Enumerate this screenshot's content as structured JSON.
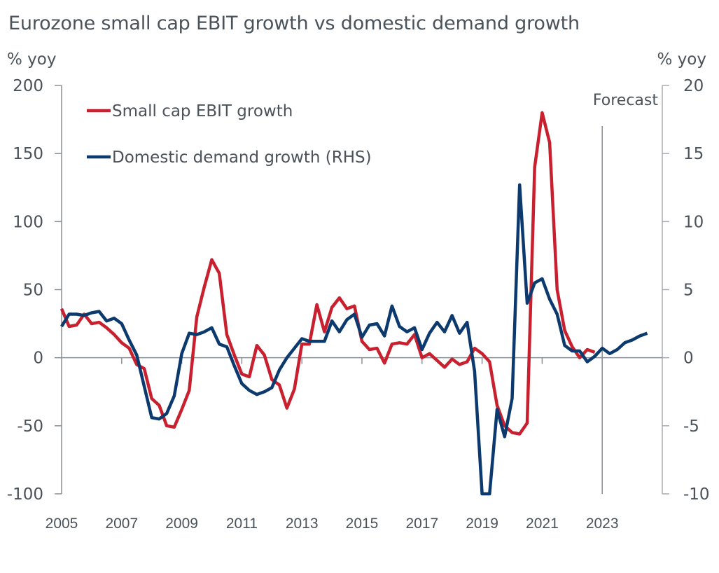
{
  "chart_data": {
    "type": "line",
    "title": "Eurozone small cap EBIT growth vs domestic demand growth",
    "ylabel_left": "% yoy",
    "ylabel_right": "% yoy",
    "xlabel": "",
    "ylim_left": [
      -100,
      200
    ],
    "ylim_right": [
      -10,
      20
    ],
    "yticks_left": [
      "200",
      "150",
      "100",
      "50",
      "0",
      "-50",
      "-100"
    ],
    "yticks_left_values": [
      200,
      150,
      100,
      50,
      0,
      -50,
      -100
    ],
    "yticks_right": [
      "20",
      "15",
      "10",
      "5",
      "0",
      "-5",
      "-10"
    ],
    "yticks_right_values": [
      20,
      15,
      10,
      5,
      0,
      -5,
      -10
    ],
    "xticks": [
      "2005",
      "2007",
      "2009",
      "2011",
      "2013",
      "2015",
      "2017",
      "2019",
      "2021",
      "2023"
    ],
    "xticks_values": [
      2005,
      2007,
      2009,
      2011,
      2013,
      2015,
      2017,
      2019,
      2021,
      2023
    ],
    "xlim": [
      2005,
      2025
    ],
    "grid": false,
    "legend_position": "top-left",
    "annotations": [
      {
        "text": "Forecast",
        "x": 2023
      }
    ],
    "series": [
      {
        "name": "Small cap EBIT growth",
        "axis": "left",
        "color": "#c8202e",
        "x_start": 2005.0,
        "x_step": 0.25,
        "values": [
          36,
          23,
          24,
          32,
          25,
          26,
          22,
          17,
          11,
          7,
          -5,
          -8,
          -30,
          -35,
          -50,
          -51,
          -38,
          -24,
          30,
          52,
          72,
          62,
          17,
          2,
          -12,
          -14,
          9,
          2,
          -16,
          -20,
          -37,
          -23,
          10,
          10,
          39,
          19,
          37,
          44,
          36,
          38,
          12,
          6,
          7,
          -4,
          10,
          11,
          10,
          17,
          0,
          3,
          -2,
          -7,
          -1,
          -5,
          -3,
          7,
          3,
          -3,
          -35,
          -50,
          -55,
          -56,
          -48,
          140,
          180,
          158,
          50,
          20,
          8,
          0,
          6,
          4
        ]
      },
      {
        "name": "Domestic demand growth (RHS)",
        "axis": "right",
        "color": "#0c3a6e",
        "x_start": 2005.0,
        "x_step": 0.25,
        "values": [
          2.3,
          3.2,
          3.2,
          3.1,
          3.3,
          3.4,
          2.7,
          2.9,
          2.5,
          1.3,
          0.2,
          -2.1,
          -4.4,
          -4.5,
          -4.1,
          -2.8,
          0.3,
          1.8,
          1.7,
          1.9,
          2.2,
          1.0,
          0.8,
          -0.6,
          -1.9,
          -2.4,
          -2.7,
          -2.5,
          -2.2,
          -0.9,
          0.0,
          0.7,
          1.4,
          1.2,
          1.2,
          1.2,
          2.7,
          1.9,
          2.8,
          3.2,
          1.5,
          2.4,
          2.5,
          1.6,
          3.8,
          2.3,
          1.9,
          2.2,
          0.6,
          1.8,
          2.6,
          1.9,
          3.1,
          1.8,
          2.6,
          -1.0,
          -10.0,
          -10.0,
          -3.8,
          -5.8,
          -3.0,
          12.7,
          4.0,
          5.5,
          5.8,
          4.3,
          3.2,
          0.9,
          0.5,
          0.5,
          -0.3,
          0.1,
          0.7,
          0.3,
          0.6,
          1.1,
          1.3,
          1.6,
          1.8
        ]
      }
    ]
  }
}
